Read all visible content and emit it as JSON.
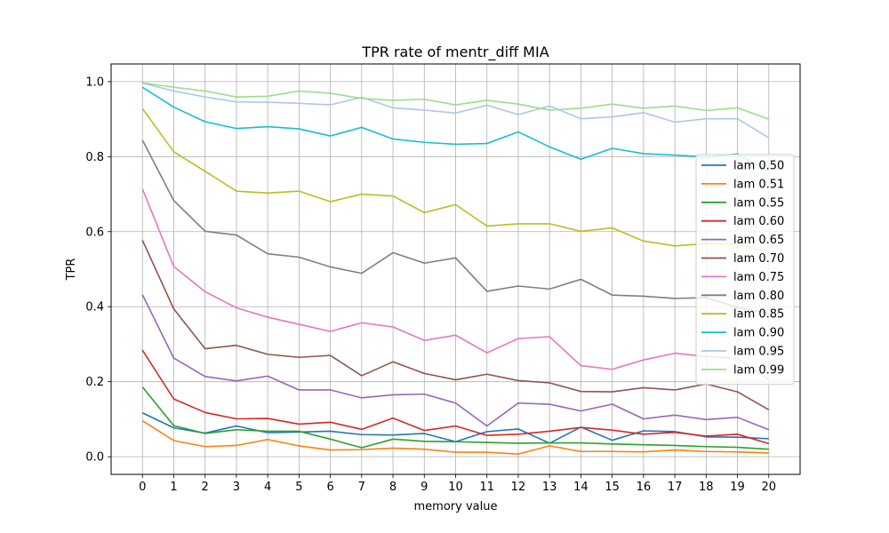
{
  "chart_data": {
    "type": "line",
    "title": "TPR rate of mentr_diff MIA",
    "xlabel": "memory value",
    "ylabel": "TPR",
    "x": [
      0,
      1,
      2,
      3,
      4,
      5,
      6,
      7,
      8,
      9,
      10,
      11,
      12,
      13,
      14,
      15,
      16,
      17,
      18,
      19,
      20
    ],
    "xlim": [
      -1,
      21
    ],
    "ylim": [
      -0.047,
      1.047
    ],
    "yticks": [
      0.0,
      0.2,
      0.4,
      0.6,
      0.8,
      1.0
    ],
    "ytick_labels": [
      "0.0",
      "0.2",
      "0.4",
      "0.6",
      "0.8",
      "1.0"
    ],
    "grid": true,
    "legend_position": "right",
    "series": [
      {
        "name": "lam 0.50",
        "color": "#1f77b4",
        "values": [
          0.117,
          0.077,
          0.063,
          0.082,
          0.064,
          0.066,
          0.068,
          0.059,
          0.058,
          0.062,
          0.04,
          0.067,
          0.074,
          0.036,
          0.079,
          0.044,
          0.069,
          0.067,
          0.053,
          0.052,
          0.048
        ]
      },
      {
        "name": "lam 0.51",
        "color": "#ff7f0e",
        "values": [
          0.096,
          0.043,
          0.027,
          0.03,
          0.046,
          0.029,
          0.018,
          0.019,
          0.023,
          0.02,
          0.012,
          0.012,
          0.007,
          0.029,
          0.014,
          0.014,
          0.013,
          0.018,
          0.014,
          0.013,
          0.01
        ]
      },
      {
        "name": "lam 0.55",
        "color": "#2ca02c",
        "values": [
          0.186,
          0.083,
          0.062,
          0.072,
          0.068,
          0.068,
          0.047,
          0.024,
          0.047,
          0.041,
          0.04,
          0.038,
          0.036,
          0.037,
          0.037,
          0.034,
          0.032,
          0.03,
          0.027,
          0.025,
          0.02
        ]
      },
      {
        "name": "lam 0.60",
        "color": "#d62728",
        "values": [
          0.284,
          0.154,
          0.118,
          0.101,
          0.102,
          0.087,
          0.092,
          0.073,
          0.103,
          0.07,
          0.082,
          0.057,
          0.06,
          0.068,
          0.078,
          0.071,
          0.06,
          0.065,
          0.055,
          0.06,
          0.035
        ]
      },
      {
        "name": "lam 0.65",
        "color": "#9467bd",
        "values": [
          0.432,
          0.263,
          0.214,
          0.202,
          0.215,
          0.178,
          0.178,
          0.157,
          0.165,
          0.167,
          0.143,
          0.082,
          0.143,
          0.14,
          0.122,
          0.14,
          0.101,
          0.111,
          0.099,
          0.105,
          0.072
        ]
      },
      {
        "name": "lam 0.70",
        "color": "#8c564b",
        "values": [
          0.577,
          0.394,
          0.288,
          0.297,
          0.273,
          0.265,
          0.27,
          0.216,
          0.253,
          0.222,
          0.205,
          0.22,
          0.203,
          0.197,
          0.174,
          0.173,
          0.184,
          0.178,
          0.194,
          0.173,
          0.125
        ]
      },
      {
        "name": "lam 0.75",
        "color": "#e377c2",
        "values": [
          0.714,
          0.507,
          0.44,
          0.397,
          0.372,
          0.353,
          0.334,
          0.357,
          0.346,
          0.31,
          0.324,
          0.277,
          0.315,
          0.32,
          0.243,
          0.233,
          0.258,
          0.276,
          0.267,
          0.262,
          0.205
        ]
      },
      {
        "name": "lam 0.80",
        "color": "#7f7f7f",
        "values": [
          0.844,
          0.683,
          0.601,
          0.591,
          0.541,
          0.532,
          0.506,
          0.489,
          0.544,
          0.516,
          0.53,
          0.441,
          0.455,
          0.447,
          0.473,
          0.431,
          0.428,
          0.422,
          0.424,
          0.398,
          0.383
        ]
      },
      {
        "name": "lam 0.85",
        "color": "#bcbd22",
        "values": [
          0.928,
          0.813,
          0.761,
          0.708,
          0.703,
          0.708,
          0.68,
          0.7,
          0.695,
          0.651,
          0.672,
          0.615,
          0.621,
          0.621,
          0.601,
          0.61,
          0.575,
          0.562,
          0.568,
          0.566,
          0.545
        ]
      },
      {
        "name": "lam 0.90",
        "color": "#17becf",
        "values": [
          0.985,
          0.932,
          0.893,
          0.875,
          0.88,
          0.874,
          0.855,
          0.878,
          0.847,
          0.838,
          0.833,
          0.835,
          0.866,
          0.826,
          0.793,
          0.822,
          0.808,
          0.804,
          0.799,
          0.807,
          0.76
        ]
      },
      {
        "name": "lam 0.95",
        "color": "#aec7e8",
        "values": [
          0.996,
          0.975,
          0.959,
          0.946,
          0.945,
          0.942,
          0.938,
          0.958,
          0.93,
          0.924,
          0.916,
          0.937,
          0.912,
          0.935,
          0.901,
          0.906,
          0.917,
          0.892,
          0.901,
          0.901,
          0.85
        ]
      },
      {
        "name": "lam 0.99",
        "color": "#98df8a",
        "values": [
          0.997,
          0.985,
          0.975,
          0.959,
          0.961,
          0.975,
          0.969,
          0.955,
          0.95,
          0.953,
          0.938,
          0.95,
          0.94,
          0.924,
          0.929,
          0.94,
          0.929,
          0.935,
          0.923,
          0.93,
          0.9
        ]
      }
    ]
  }
}
